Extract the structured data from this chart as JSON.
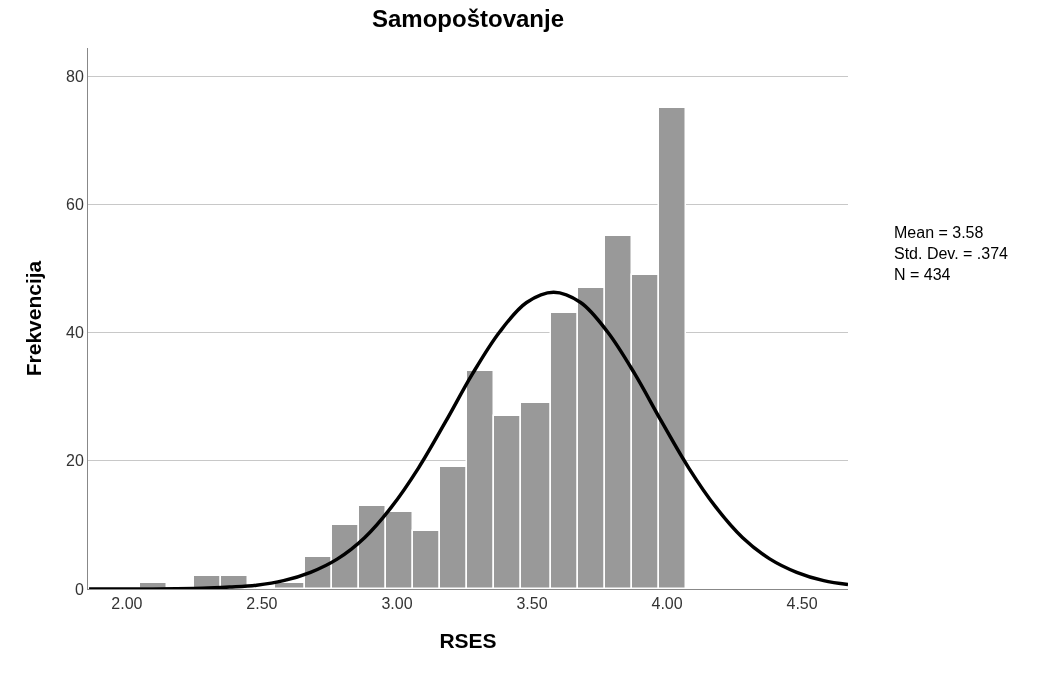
{
  "chart_data": {
    "type": "histogram",
    "title": "Samopoštovanje",
    "xlabel": "RSES",
    "ylabel": "Frekvencija",
    "bins": [
      2.05,
      2.15,
      2.25,
      2.35,
      2.45,
      2.55,
      2.66,
      2.76,
      2.86,
      2.96,
      3.06,
      3.16,
      3.26,
      3.36,
      3.46,
      3.57,
      3.67,
      3.77,
      3.87,
      3.97,
      4.07
    ],
    "values": [
      1,
      0,
      2,
      2,
      0,
      1,
      5,
      10,
      13,
      12,
      9,
      19,
      34,
      27,
      29,
      43,
      47,
      55,
      49,
      75
    ],
    "color": "#999999",
    "series": [
      {
        "type": "line",
        "color": "#000000",
        "x": [
          1.86,
          2.08,
          2.28,
          2.38,
          2.48,
          2.58,
          2.68,
          2.78,
          2.88,
          2.98,
          3.08,
          3.18,
          3.28,
          3.38,
          3.48,
          3.58,
          3.68,
          3.78,
          3.88,
          3.98,
          4.08,
          4.18,
          4.28,
          4.38,
          4.48,
          4.58,
          4.67
        ],
        "values": [
          0,
          0,
          0.1,
          0.3,
          0.6,
          1.3,
          2.6,
          4.7,
          8.0,
          12.8,
          18.9,
          26.1,
          33.6,
          40.1,
          44.7,
          46.3,
          44.7,
          40.1,
          33.6,
          26.1,
          18.9,
          12.8,
          8.0,
          4.7,
          2.6,
          1.3,
          0.7
        ]
      }
    ],
    "annotations": [
      "Mean = 3.58\nStd. Dev. = .374\nN = 434"
    ],
    "xlim": [
      1.856,
      4.67
    ],
    "ylim": [
      0,
      84.4
    ],
    "xticks": [
      {
        "value": 2,
        "label": "2.00"
      },
      {
        "value": 2.5,
        "label": "2.50"
      },
      {
        "value": 3,
        "label": "3.00"
      },
      {
        "value": 3.5,
        "label": "3.50"
      },
      {
        "value": 4,
        "label": "4.00"
      },
      {
        "value": 4.5,
        "label": "4.50"
      }
    ],
    "yticks": [
      0,
      20,
      40,
      60,
      80
    ],
    "grid": "y"
  }
}
